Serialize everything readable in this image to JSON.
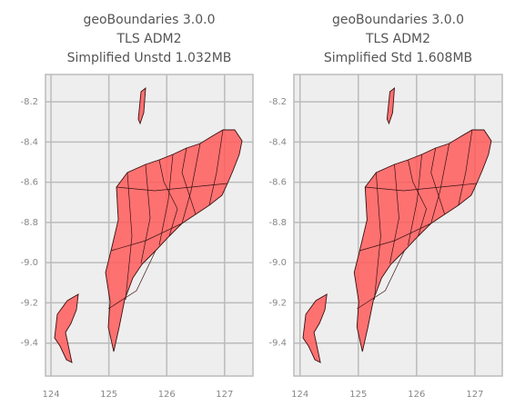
{
  "chart_data": [
    {
      "type": "map",
      "title": [
        "geoBoundaries 3.0.0",
        "TLS ADM2",
        "Simplified Unstd 1.032MB"
      ],
      "xlim": [
        123.905,
        127.49
      ],
      "ylim": [
        -9.564,
        -8.064
      ],
      "xticks": [
        124,
        125,
        126,
        127
      ],
      "yticks": [
        -8.2,
        -8.4,
        -8.6,
        -8.8,
        {
          "value": -9,
          "label": "-9.0"
        },
        -9.2,
        -9.4
      ],
      "grid": true,
      "color": "#ff5a5a"
    },
    {
      "type": "map",
      "title": [
        "geoBoundaries 3.0.0",
        "TLS ADM2",
        "Simplified Std 1.608MB"
      ],
      "xlim": [
        123.895,
        127.47
      ],
      "ylim": [
        -9.564,
        -8.064
      ],
      "xticks": [
        124,
        125,
        126,
        127
      ],
      "yticks": [
        -8.2,
        -8.4,
        -8.6,
        -8.8,
        {
          "value": -9,
          "label": "-9.0"
        },
        -9.2,
        -9.4
      ],
      "grid": true,
      "color": "#ff5a5a"
    }
  ]
}
